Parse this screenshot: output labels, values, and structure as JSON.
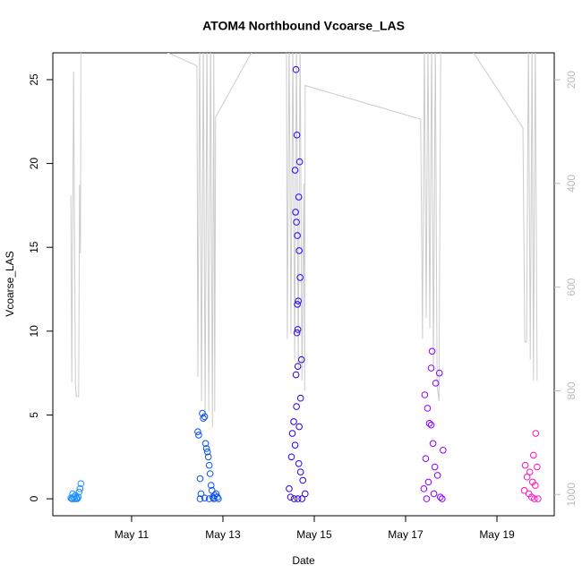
{
  "chart_data": {
    "type": "scatter",
    "title": "ATOM4 Northbound Vcoarse_LAS",
    "x_label": "Date",
    "y_label": "Vcoarse_LAS",
    "xlim": [
      9.275,
      20.255
    ],
    "xticks": [
      {
        "value": 11,
        "label": "May 11"
      },
      {
        "value": 13,
        "label": "May 13"
      },
      {
        "value": 15,
        "label": "May 15"
      },
      {
        "value": 17,
        "label": "May 17"
      },
      {
        "value": 19,
        "label": "May 19"
      }
    ],
    "ylim": [
      -1.01,
      26.6
    ],
    "yticks": [
      0,
      5,
      10,
      15,
      20,
      25
    ],
    "y2lim": [
      1041,
      148
    ],
    "y2ticks": [
      200,
      400,
      600,
      800,
      1000
    ],
    "y2_color": "#bbbbbb",
    "grid": false,
    "series": [
      {
        "color": "#cccccc",
        "type": "line",
        "axis": "y2",
        "x": [
          9.67,
          9.69,
          9.73,
          9.77,
          9.79,
          9.84,
          9.86,
          9.88,
          9.89,
          11.35,
          12.43,
          12.45,
          12.49,
          12.53,
          12.57,
          12.61,
          12.65,
          12.69,
          12.73,
          12.77,
          12.8,
          12.82,
          12.84,
          13.8,
          14.39,
          14.41,
          14.45,
          14.49,
          14.53,
          14.57,
          14.61,
          14.65,
          14.69,
          14.73,
          14.77,
          14.79,
          14.8,
          17.33,
          17.37,
          17.41,
          17.45,
          17.49,
          17.53,
          17.57,
          17.61,
          17.65,
          17.69,
          17.73,
          17.77,
          18.28,
          19.57,
          19.61,
          19.65,
          19.69,
          19.73,
          19.77,
          19.8,
          19.84,
          19.88
        ],
        "values": [
          423,
          784,
          184,
          789,
          811,
          811,
          403,
          535,
          120,
          130,
          173,
          773,
          120,
          820,
          120,
          844,
          120,
          840,
          120,
          870,
          150,
          840,
          272,
          120,
          120,
          700,
          120,
          690,
          120,
          740,
          120,
          760,
          120,
          780,
          400,
          800,
          211,
          276,
          700,
          120,
          660,
          120,
          680,
          120,
          760,
          120,
          790,
          820,
          120,
          120,
          293,
          706,
          706,
          120,
          740,
          120,
          780,
          120,
          780
        ]
      },
      {
        "color": "#1e90ff",
        "x": [
          9.67,
          9.69,
          9.71,
          9.73,
          9.75,
          9.77,
          9.79,
          9.81,
          9.83,
          9.85,
          9.87,
          9.89,
          9.71,
          9.79
        ],
        "values": [
          0.05,
          0,
          0.3,
          0.1,
          0,
          0.2,
          0.05,
          0,
          0.1,
          0.4,
          0.6,
          0.9,
          0,
          0.02
        ]
      },
      {
        "color": "#0a50f0",
        "x": [
          12.45,
          12.47,
          12.5,
          12.52,
          12.55,
          12.57,
          12.6,
          12.62,
          12.64,
          12.66,
          12.68,
          12.7,
          12.72,
          12.74,
          12.76,
          12.78,
          12.8,
          12.82,
          12.85,
          12.88,
          12.9,
          12.5,
          12.6,
          12.7,
          12.8
        ],
        "values": [
          4.0,
          3.8,
          1.2,
          0.3,
          5.1,
          4.8,
          4.9,
          3.3,
          3.0,
          2.8,
          2.5,
          2.0,
          1.5,
          0.8,
          0.5,
          0.1,
          0,
          0.2,
          0.3,
          0.1,
          0,
          0,
          0.05,
          0,
          0.02
        ]
      },
      {
        "color": "#2a00f0",
        "x": [
          14.6,
          14.62,
          14.68,
          14.58,
          14.66,
          14.59,
          14.61,
          14.63,
          14.67,
          14.69,
          14.65,
          14.63,
          14.64,
          14.62,
          14.72,
          14.64,
          14.6,
          14.7,
          14.61,
          14.55,
          14.67,
          14.52,
          14.58,
          14.5,
          14.66,
          14.7,
          14.75,
          14.45,
          14.8,
          14.48,
          14.56,
          14.64,
          14.73
        ],
        "values": [
          25.6,
          21.7,
          20.1,
          19.6,
          18,
          17.1,
          16.5,
          15.7,
          14.8,
          13.2,
          11.8,
          11.6,
          10.1,
          9.9,
          8.3,
          7.9,
          7.4,
          6,
          5.5,
          4.6,
          4.3,
          3.9,
          3.2,
          2.5,
          2.1,
          1.6,
          1.1,
          0.6,
          0.3,
          0.1,
          0,
          0,
          0
        ]
      },
      {
        "color": "#8a00ff",
        "x": [
          17.58,
          17.56,
          17.74,
          17.66,
          17.42,
          17.48,
          17.52,
          17.56,
          17.6,
          17.82,
          17.44,
          17.64,
          17.7,
          17.5,
          17.4,
          17.62,
          17.76,
          17.46,
          17.8
        ],
        "values": [
          8.8,
          7.8,
          7.5,
          6.9,
          6.2,
          5.4,
          4.5,
          4.4,
          3.3,
          2.9,
          2.4,
          1.9,
          1.4,
          1,
          0.6,
          0.3,
          0.1,
          0,
          0
        ]
      },
      {
        "color": "#ff10c0",
        "x": [
          19.85,
          19.8,
          19.62,
          19.88,
          19.72,
          19.66,
          19.78,
          19.84,
          19.6,
          19.7,
          19.76,
          19.82,
          19.9
        ],
        "values": [
          3.9,
          2.6,
          2.0,
          1.9,
          1.6,
          1.3,
          1.0,
          0.8,
          0.5,
          0.3,
          0.1,
          0,
          0
        ]
      }
    ]
  }
}
